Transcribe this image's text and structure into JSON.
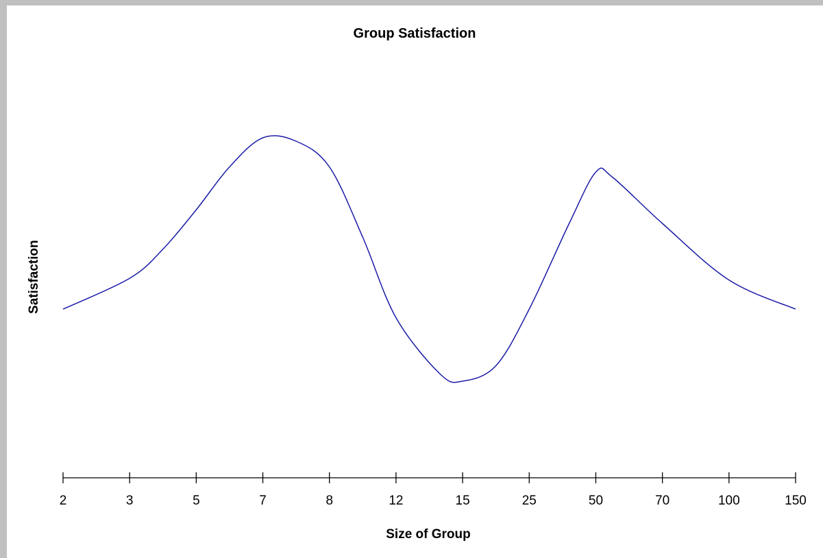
{
  "chart_data": {
    "type": "line",
    "title": "Group Satisfaction",
    "xlabel": "Size of Group",
    "ylabel": "Satisfaction",
    "x_scale": "categorical",
    "y_ticks_shown": false,
    "grid": false,
    "legend": "none",
    "line_color": "#1a1aa6",
    "categories": [
      "2",
      "3",
      "5",
      "7",
      "8",
      "12",
      "15",
      "25",
      "50",
      "70",
      "100",
      "150"
    ],
    "series": [
      {
        "x": [
          2,
          3,
          4,
          5,
          6,
          7,
          7.5,
          8,
          10,
          12,
          14,
          15,
          20,
          25,
          40,
          50,
          55,
          70,
          100,
          150
        ],
        "values": [
          0.0,
          0.18,
          0.35,
          0.58,
          0.83,
          1.0,
          0.98,
          0.83,
          0.42,
          -0.05,
          -0.38,
          -0.42,
          -0.33,
          0.0,
          0.5,
          0.8,
          0.77,
          0.5,
          0.17,
          0.0
        ]
      }
    ]
  }
}
